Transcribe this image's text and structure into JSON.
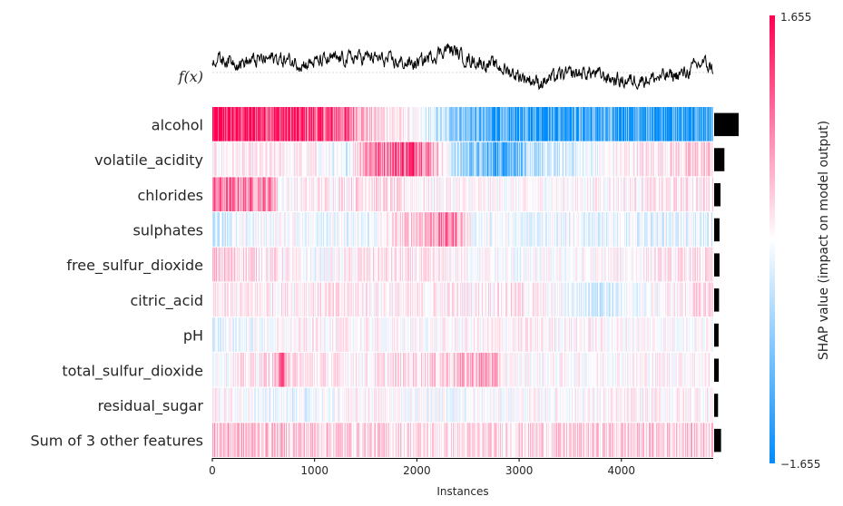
{
  "chart_data": {
    "type": "heatmap",
    "title": "",
    "fx_label": "f(x)",
    "xlabel": "Instances",
    "xlim": [
      0,
      4898
    ],
    "xticks": [
      "0",
      "1000",
      "2000",
      "3000",
      "4000"
    ],
    "xtick_values": [
      0,
      1000,
      2000,
      3000,
      4000
    ],
    "features": [
      "alcohol",
      "volatile_acidity",
      "chlorides",
      "sulphates",
      "free_sulfur_dioxide",
      "citric_acid",
      "pH",
      "total_sulfur_dioxide",
      "residual_sugar",
      "Sum of 3 other features"
    ],
    "mean_abs_shap": [
      1.0,
      0.42,
      0.26,
      0.22,
      0.22,
      0.2,
      0.18,
      0.19,
      0.16,
      0.28
    ],
    "colorbar": {
      "label": "SHAP value (impact on model output)",
      "max_label": "1.655",
      "min_label": "−1.655",
      "vmin": -1.655,
      "vmax": 1.655,
      "low_color": "#008bfb",
      "mid_color": "#ffffff",
      "high_color": "#ff0052"
    },
    "row_profiles": [
      [
        [
          0,
          0.9
        ],
        [
          700,
          0.8
        ],
        [
          1300,
          0.6
        ],
        [
          1550,
          0.2
        ],
        [
          1900,
          0.05
        ],
        [
          2300,
          -0.3
        ],
        [
          2800,
          -0.8
        ],
        [
          3600,
          -0.7
        ],
        [
          4100,
          -0.8
        ],
        [
          4898,
          -0.8
        ]
      ],
      [
        [
          0,
          0.05
        ],
        [
          1000,
          0.05
        ],
        [
          1300,
          -0.15
        ],
        [
          1500,
          0.45
        ],
        [
          2000,
          0.75
        ],
        [
          2400,
          -0.3
        ],
        [
          2800,
          -0.65
        ],
        [
          3200,
          -0.25
        ],
        [
          4000,
          0.05
        ],
        [
          4898,
          0.2
        ]
      ],
      [
        [
          0,
          0.5
        ],
        [
          600,
          0.45
        ],
        [
          650,
          0.0
        ],
        [
          1500,
          0.15
        ],
        [
          2000,
          0.05
        ],
        [
          3000,
          0.0
        ],
        [
          4898,
          0.1
        ]
      ],
      [
        [
          0,
          -0.15
        ],
        [
          650,
          0.0
        ],
        [
          1500,
          -0.1
        ],
        [
          2350,
          0.5
        ],
        [
          2550,
          -0.05
        ],
        [
          4898,
          -0.1
        ]
      ],
      [
        [
          0,
          0.2
        ],
        [
          600,
          0.1
        ],
        [
          1000,
          -0.05
        ],
        [
          1500,
          0.1
        ],
        [
          2300,
          0.05
        ],
        [
          3000,
          -0.05
        ],
        [
          4898,
          0.1
        ]
      ],
      [
        [
          0,
          0.05
        ],
        [
          1000,
          0.1
        ],
        [
          2000,
          0.05
        ],
        [
          3000,
          0.1
        ],
        [
          3800,
          -0.15
        ],
        [
          4898,
          0.15
        ]
      ],
      [
        [
          0,
          -0.1
        ],
        [
          1000,
          0.05
        ],
        [
          2000,
          0.0
        ],
        [
          3000,
          0.05
        ],
        [
          4898,
          0.0
        ]
      ],
      [
        [
          0,
          0.0
        ],
        [
          600,
          0.15
        ],
        [
          700,
          0.6
        ],
        [
          780,
          0.1
        ],
        [
          1500,
          0.05
        ],
        [
          2300,
          0.2
        ],
        [
          2700,
          0.35
        ],
        [
          2900,
          0.0
        ],
        [
          4898,
          0.05
        ]
      ],
      [
        [
          0,
          0.05
        ],
        [
          800,
          -0.1
        ],
        [
          1500,
          0.05
        ],
        [
          2300,
          -0.05
        ],
        [
          3000,
          0.0
        ],
        [
          4898,
          0.05
        ]
      ],
      [
        [
          0,
          0.25
        ],
        [
          1000,
          0.2
        ],
        [
          2300,
          0.1
        ],
        [
          3000,
          0.15
        ],
        [
          4898,
          0.2
        ]
      ]
    ],
    "fx_profile": [
      [
        0,
        0.5
      ],
      [
        300,
        0.35
      ],
      [
        600,
        0.5
      ],
      [
        900,
        0.3
      ],
      [
        1200,
        0.45
      ],
      [
        1500,
        0.55
      ],
      [
        1800,
        0.35
      ],
      [
        2000,
        0.3
      ],
      [
        2300,
        0.85
      ],
      [
        2500,
        0.45
      ],
      [
        2800,
        0.2
      ],
      [
        3000,
        -0.1
      ],
      [
        3200,
        -0.35
      ],
      [
        3400,
        -0.1
      ],
      [
        3700,
        0.0
      ],
      [
        4000,
        -0.3
      ],
      [
        4300,
        -0.2
      ],
      [
        4600,
        -0.05
      ],
      [
        4800,
        0.35
      ],
      [
        4898,
        0.1
      ]
    ]
  }
}
